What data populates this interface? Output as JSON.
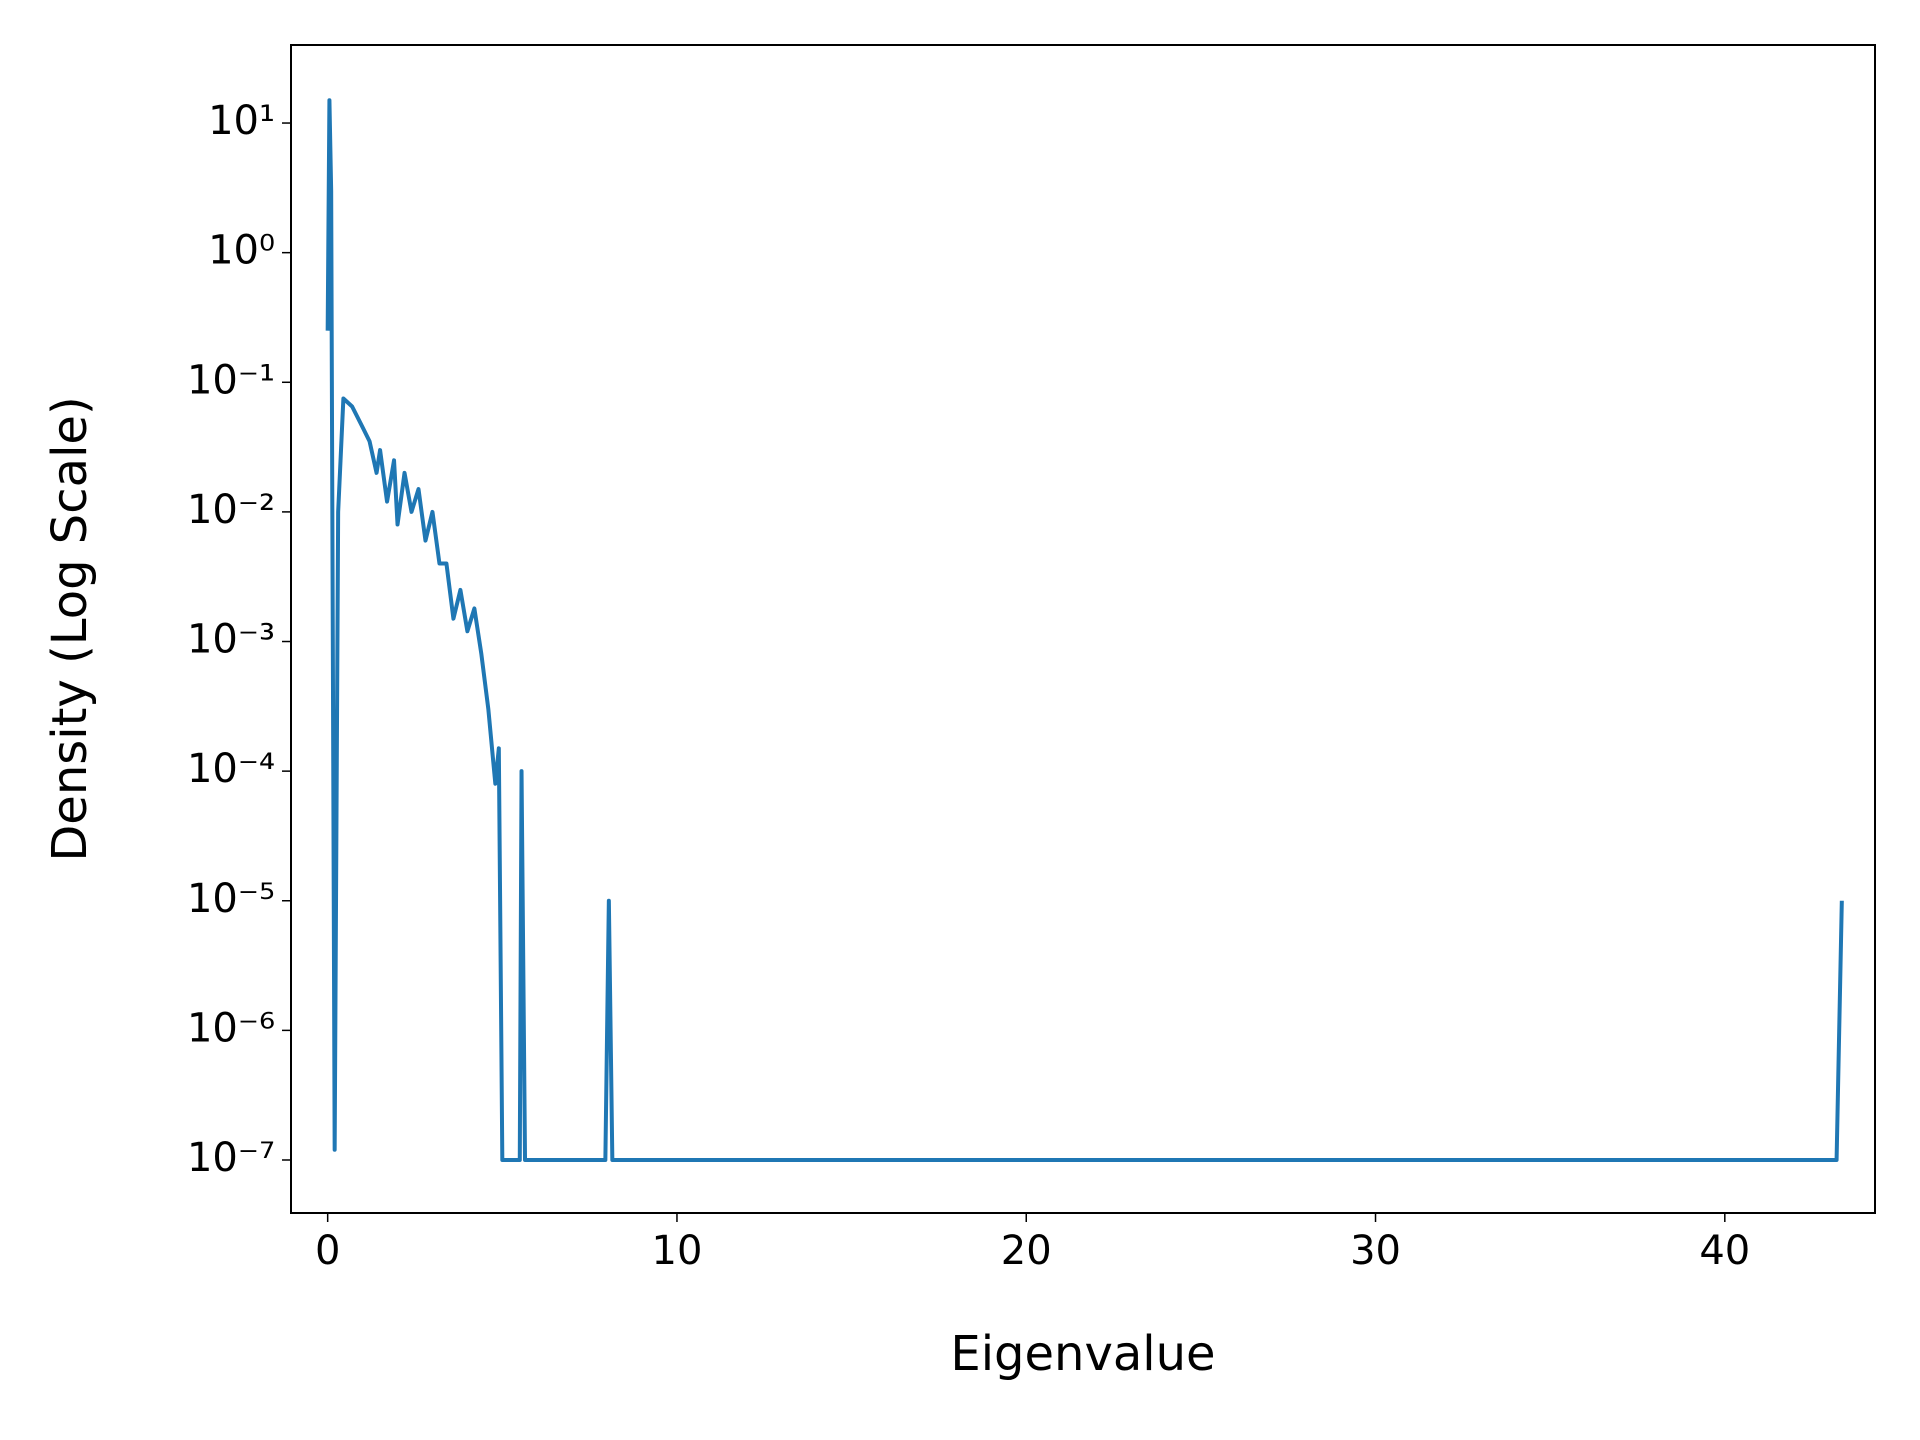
{
  "chart_data": {
    "type": "line",
    "x_label": "Eigenvalue",
    "y_label": "Density (Log Scale)",
    "x": [
      0.0,
      0.05,
      0.1,
      0.2,
      0.3,
      0.45,
      0.7,
      1.0,
      1.2,
      1.4,
      1.5,
      1.7,
      1.9,
      2.0,
      2.2,
      2.4,
      2.6,
      2.8,
      3.0,
      3.2,
      3.4,
      3.6,
      3.8,
      4.0,
      4.2,
      4.4,
      4.6,
      4.8,
      4.9,
      5.0,
      5.5,
      5.55,
      5.65,
      7.95,
      8.05,
      8.15,
      43.2,
      43.35
    ],
    "series": [
      {
        "color": "#1f77b4",
        "values": [
          0.25,
          15,
          3,
          1.2e-07,
          0.01,
          0.075,
          0.065,
          0.045,
          0.035,
          0.02,
          0.03,
          0.012,
          0.025,
          0.008,
          0.02,
          0.01,
          0.015,
          0.006,
          0.01,
          0.004,
          0.004,
          0.0015,
          0.0025,
          0.0012,
          0.0018,
          0.0008,
          0.0003,
          8e-05,
          0.00015,
          1e-07,
          1e-07,
          0.0001,
          1e-07,
          1e-07,
          1e-05,
          1e-07,
          1e-07,
          1e-05
        ]
      }
    ],
    "xlim": [
      -1.05,
      44.3
    ],
    "xticks": [
      0,
      10,
      20,
      30,
      40
    ],
    "ylim": [
      3.9e-08,
      40
    ],
    "log_y": true,
    "yticks": [
      {
        "value": 1e-07,
        "label": "10⁻⁷"
      },
      {
        "value": 1e-06,
        "label": "10⁻⁶"
      },
      {
        "value": 1e-05,
        "label": "10⁻⁵"
      },
      {
        "value": 0.0001,
        "label": "10⁻⁴"
      },
      {
        "value": 0.001,
        "label": "10⁻³"
      },
      {
        "value": 0.01,
        "label": "10⁻²"
      },
      {
        "value": 0.1,
        "label": "10⁻¹"
      },
      {
        "value": 1,
        "label": "10⁰"
      },
      {
        "value": 10,
        "label": "10¹"
      }
    ],
    "grid": false
  }
}
